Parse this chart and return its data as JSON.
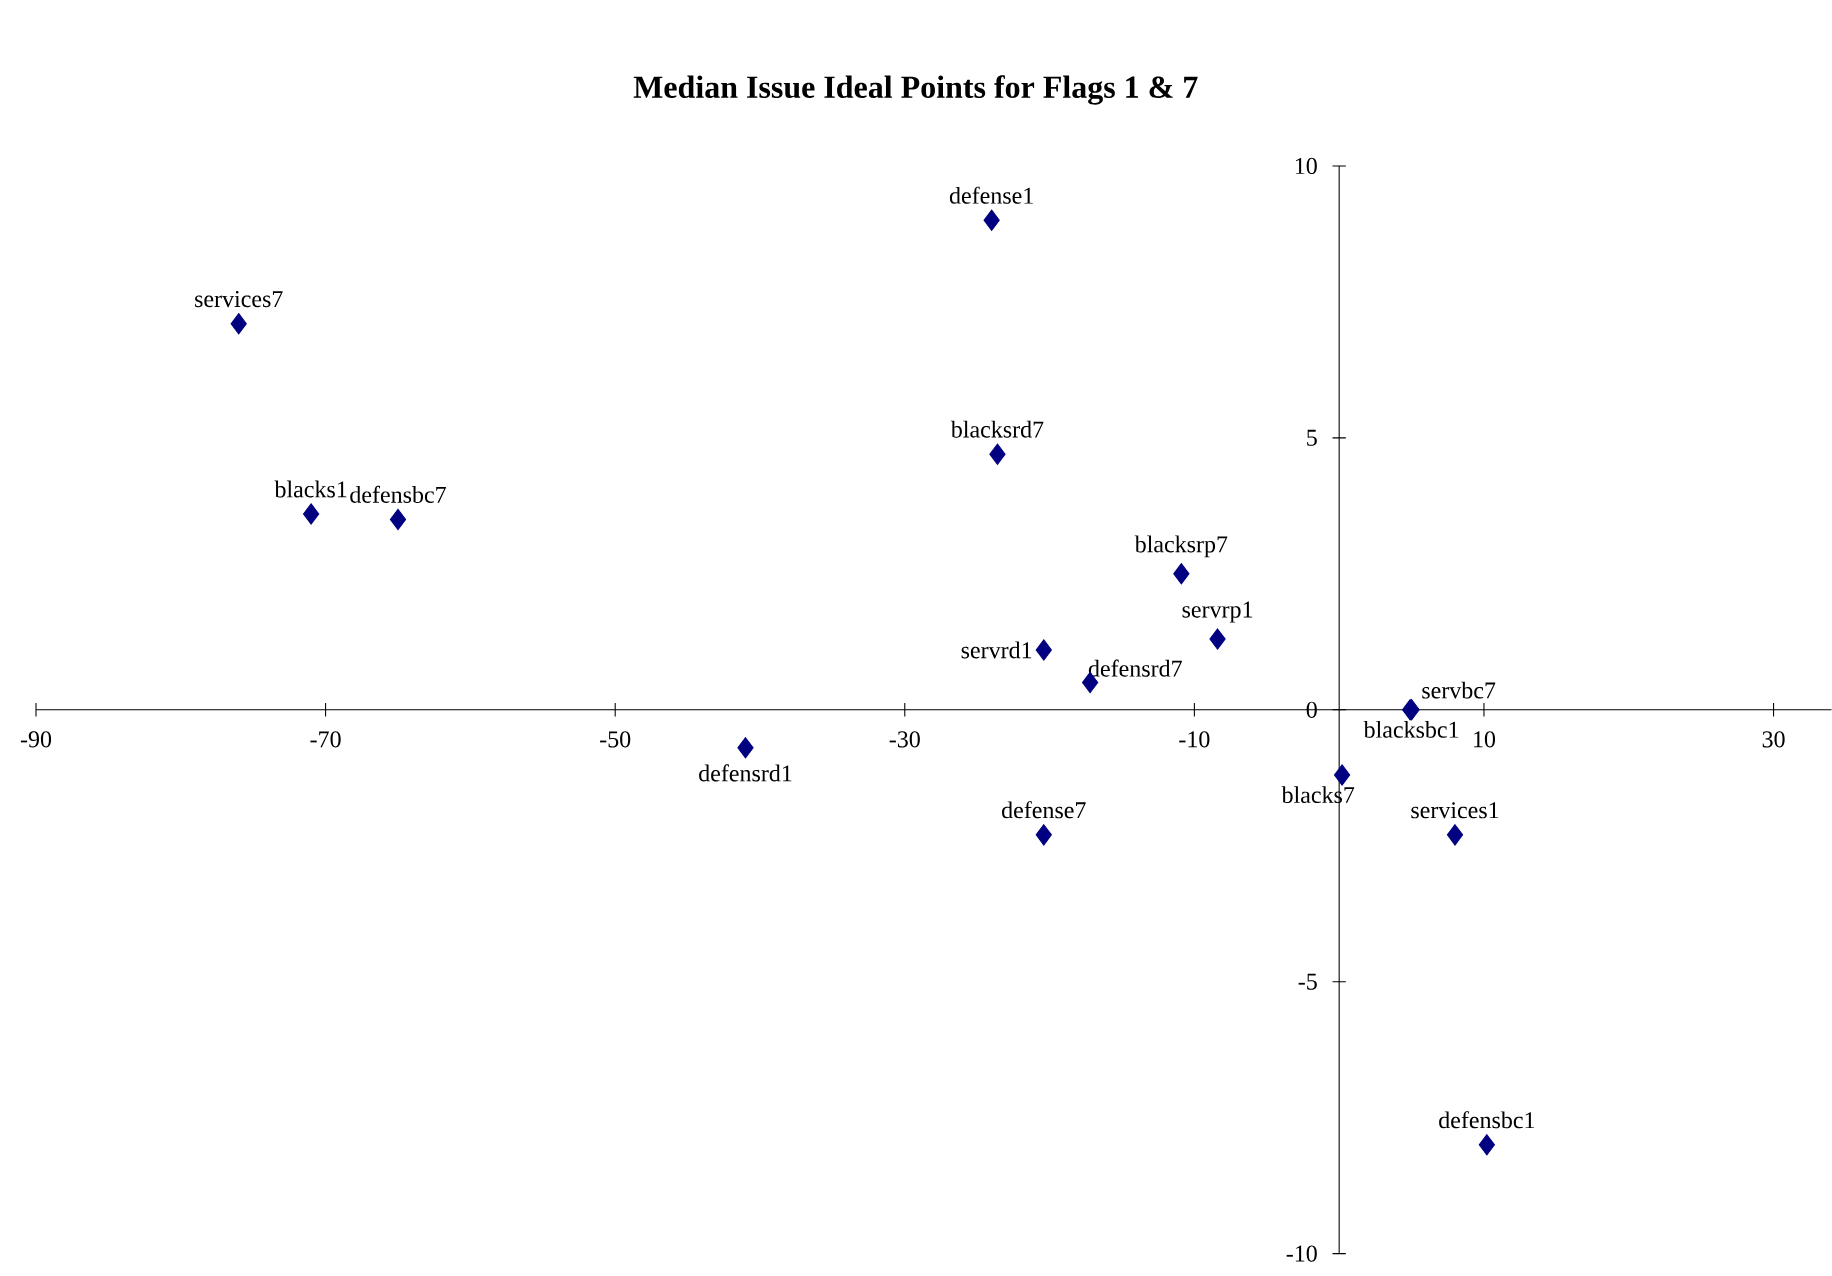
{
  "chart_data": {
    "type": "scatter",
    "title": "Median Issue Ideal Points for Flags 1 & 7",
    "xlim": [
      -90,
      34
    ],
    "ylim": [
      -10,
      10
    ],
    "xticks": [
      -90,
      -70,
      -50,
      -30,
      -10,
      10,
      30
    ],
    "yticks": [
      -10,
      -5,
      0,
      5,
      10
    ],
    "marker": "diamond",
    "legend": false,
    "grid": false,
    "series": [
      {
        "name": "services7",
        "color": "#000080",
        "x": [
          -76
        ],
        "values": [
          7.1
        ]
      },
      {
        "name": "blacks1",
        "color": "#000080",
        "x": [
          -71
        ],
        "values": [
          3.6
        ]
      },
      {
        "name": "defensbc7",
        "color": "#000080",
        "x": [
          -65
        ],
        "values": [
          3.5
        ]
      },
      {
        "name": "defensrd1",
        "color": "#000080",
        "x": [
          -41
        ],
        "values": [
          -0.7
        ]
      },
      {
        "name": "defense1",
        "color": "#000080",
        "x": [
          -24
        ],
        "values": [
          9.0
        ]
      },
      {
        "name": "blacksrd7",
        "color": "#000080",
        "x": [
          -23.6
        ],
        "values": [
          4.7
        ]
      },
      {
        "name": "servrd1",
        "color": "#000080",
        "x": [
          -20.4
        ],
        "values": [
          1.1
        ]
      },
      {
        "name": "defense7",
        "color": "#000080",
        "x": [
          -20.4
        ],
        "values": [
          -2.3
        ]
      },
      {
        "name": "defensrd7",
        "color": "#000080",
        "x": [
          -17.2
        ],
        "values": [
          0.5
        ]
      },
      {
        "name": "blacksrp7",
        "color": "#000080",
        "x": [
          -10.9
        ],
        "values": [
          2.5
        ]
      },
      {
        "name": "servrp1",
        "color": "#000080",
        "x": [
          -8.4
        ],
        "values": [
          1.3
        ]
      },
      {
        "name": "blacks7",
        "color": "#000080",
        "x": [
          0.2
        ],
        "values": [
          -1.2
        ]
      },
      {
        "name": "servbc7",
        "color": "#000080",
        "x": [
          4.9
        ],
        "values": [
          0.0
        ]
      },
      {
        "name": "blacksbc1",
        "color": "#000080",
        "x": [
          5.0
        ],
        "values": [
          0.0
        ]
      },
      {
        "name": "services1",
        "color": "#000080",
        "x": [
          8.0
        ],
        "values": [
          -2.3
        ]
      },
      {
        "name": "defensbc1",
        "color": "#000080",
        "x": [
          10.2
        ],
        "values": [
          -8.0
        ]
      }
    ]
  }
}
